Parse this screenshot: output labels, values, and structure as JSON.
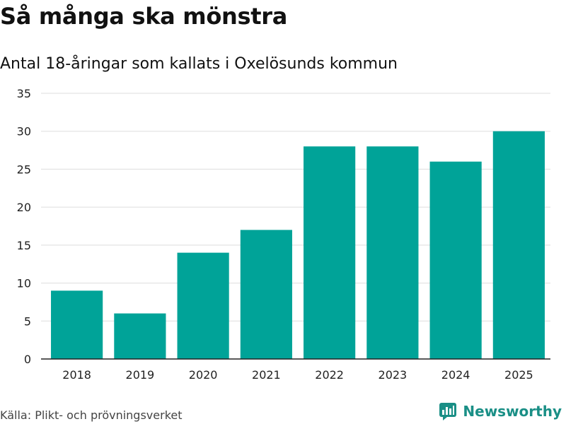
{
  "header": {
    "title": "Så många ska mönstra",
    "subtitle": "Antal 18-åringar som kallats i Oxelösunds kommun"
  },
  "footer": {
    "source": "Källa: Plikt- och prövningsverket",
    "brand": "Newsworthy"
  },
  "colors": {
    "bar": "#00a398",
    "grid": "#dddddd",
    "axis": "#222222",
    "brand": "#1a8f86"
  },
  "chart_data": {
    "type": "bar",
    "title": "Så många ska mönstra",
    "subtitle": "Antal 18-åringar som kallats i Oxelösunds kommun",
    "xlabel": "",
    "ylabel": "",
    "categories": [
      "2018",
      "2019",
      "2020",
      "2021",
      "2022",
      "2023",
      "2024",
      "2025"
    ],
    "values": [
      9,
      6,
      14,
      17,
      28,
      28,
      26,
      30
    ],
    "ylim": [
      0,
      35
    ],
    "yticks": [
      0,
      5,
      10,
      15,
      20,
      25,
      30,
      35
    ],
    "grid": true
  }
}
